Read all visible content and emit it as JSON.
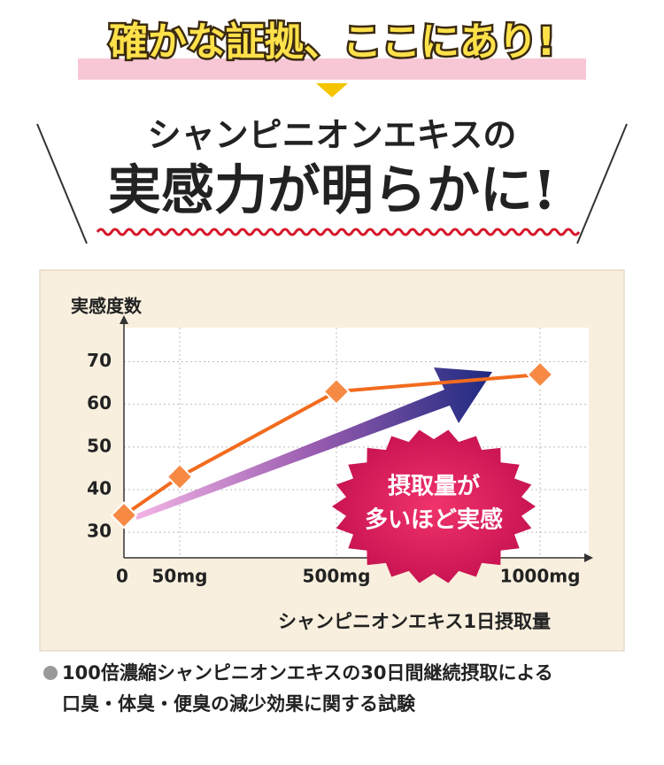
{
  "header": {
    "headline": "確かな証拠、ここにあり!",
    "subtitle": "シャンピニオンエキスの",
    "title": "実感力が明らかに!"
  },
  "chart_data": {
    "type": "line",
    "y_label": "実感度数",
    "x_label": "シャンピニオンエキス1日摂取量",
    "categories": [
      "0",
      "50mg",
      "500mg",
      "1000mg"
    ],
    "values": [
      34,
      43,
      63,
      67
    ],
    "color": "#f26b1e",
    "ylim": [
      24,
      78
    ],
    "yticks": [
      30,
      40,
      50,
      60,
      70
    ],
    "grid": true,
    "badge": [
      "摂取量が",
      "多いほど実感"
    ]
  },
  "footnote": {
    "line1": "100倍濃縮シャンピニオンエキスの30日間継続摂取による",
    "line2": "口臭・体臭・便臭の減少効果に関する試験"
  }
}
